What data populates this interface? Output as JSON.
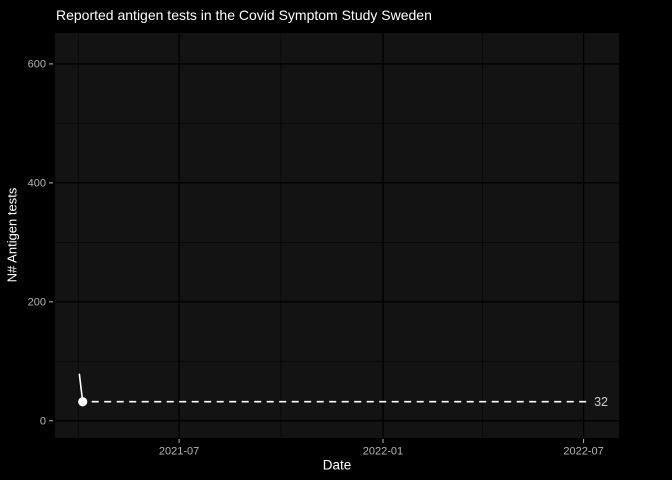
{
  "title": "Reported antigen tests in the Covid Symptom Study Sweden",
  "chart_data": {
    "type": "line",
    "title": "Reported antigen tests in the Covid Symptom Study Sweden",
    "xlabel": "Date",
    "ylabel": "N# Antigen tests",
    "x_domain": [
      "2021-03-11",
      "2022-08-02"
    ],
    "y_domain": [
      -29,
      652
    ],
    "x_major_ticks": [
      {
        "date": "2021-07-01",
        "label": "2021-07"
      },
      {
        "date": "2022-01-01",
        "label": "2022-01"
      },
      {
        "date": "2022-07-01",
        "label": "2022-07"
      }
    ],
    "x_minor_ticks": [
      "2021-04-01",
      "2021-10-01",
      "2022-04-01"
    ],
    "y_major_ticks": [
      {
        "value": 0,
        "label": "0"
      },
      {
        "value": 200,
        "label": "200"
      },
      {
        "value": 400,
        "label": "400"
      },
      {
        "value": 600,
        "label": "600"
      }
    ],
    "y_minor_ticks": [
      100,
      300,
      500
    ],
    "series": [
      {
        "name": "reported antigen tests",
        "color": "#ffffff",
        "points": [
          {
            "date": "2021-04-02",
            "value": 78
          },
          {
            "date": "2021-04-05",
            "value": 32
          }
        ],
        "marker_on_last": true
      }
    ],
    "annotation": {
      "type": "dashed-horizontal-line",
      "value": 32,
      "to_date": "2022-07-06",
      "label": "32",
      "line_color": "#ffffff",
      "label_color": "#cccccc"
    },
    "grid": true,
    "legend": "none",
    "theme": {
      "background": "#000000",
      "panel": "#131313",
      "grid_major": "#000000",
      "grid_minor": "#000000",
      "title_text": "#ffffff",
      "axis_title_text": "#ffffff",
      "tick_text": "#b5b5b5",
      "tick_mark": "#a8a8a8"
    }
  }
}
